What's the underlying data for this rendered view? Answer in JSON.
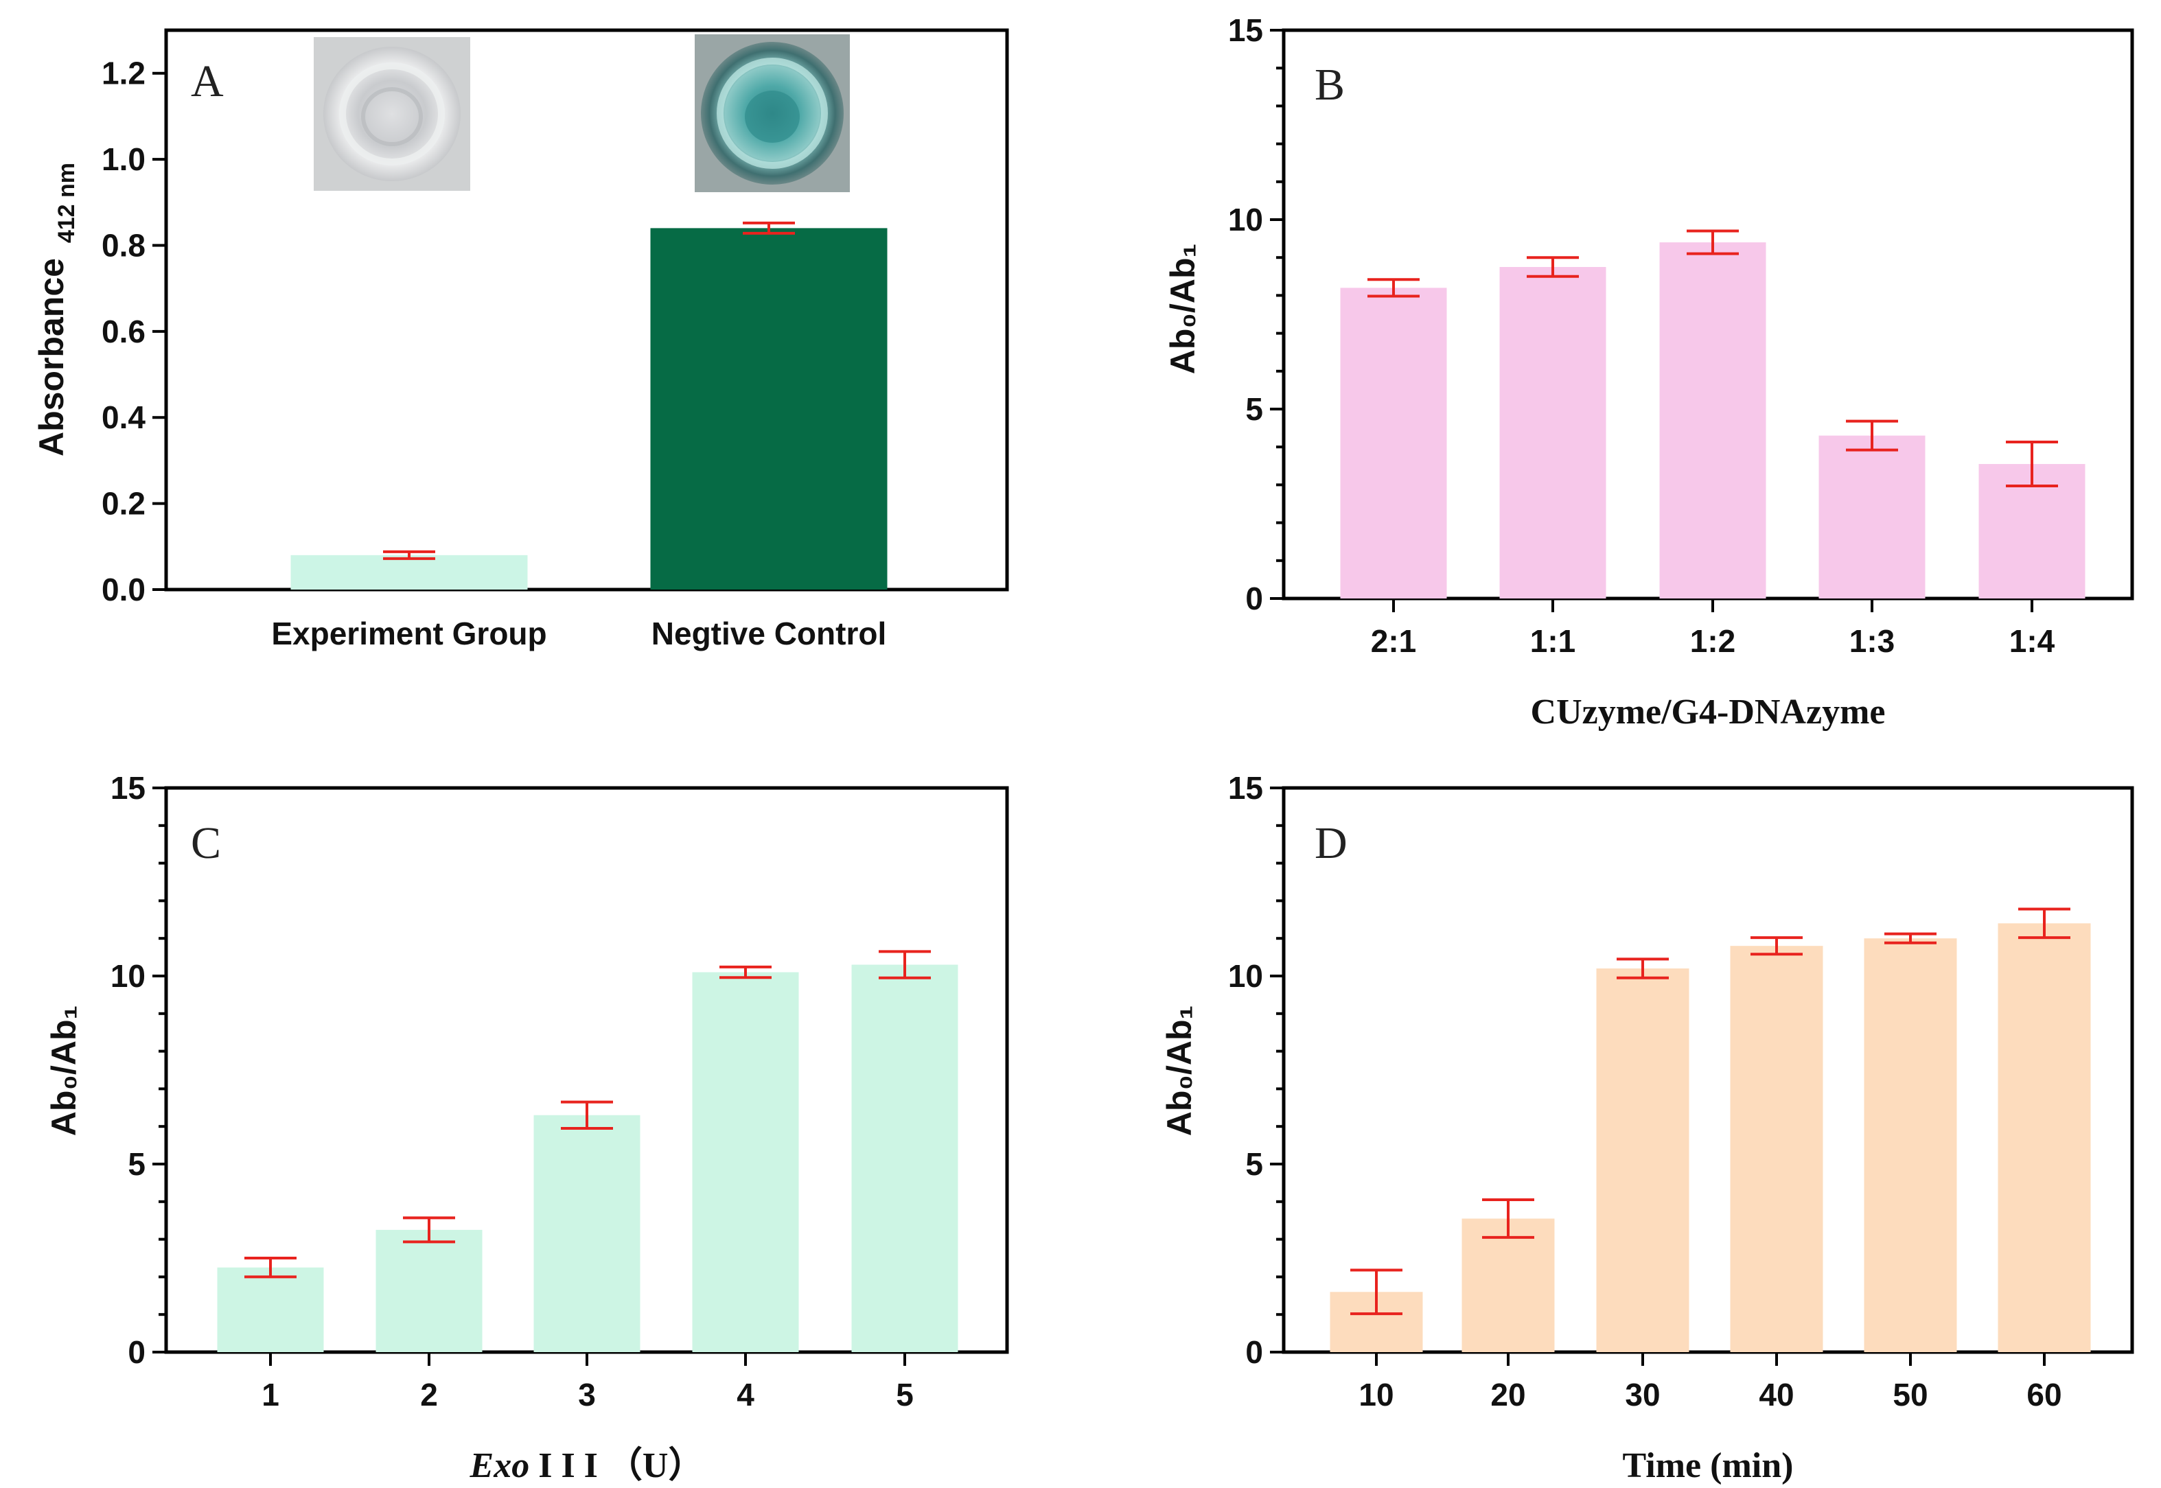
{
  "chart_data": [
    {
      "panel": "A",
      "type": "bar",
      "title": "",
      "categories": [
        "Experiment Group",
        "Negtive Control"
      ],
      "values": [
        0.08,
        0.84
      ],
      "errors": [
        0.008,
        0.012
      ],
      "colors": [
        "#ccf5e6",
        "#066b45"
      ],
      "ylabel": "Absorbance",
      "ylabel_sub": "412 nm",
      "xlabel": "",
      "ylim": [
        0,
        1.3
      ],
      "yticks": [
        "0.0",
        "0.2",
        "0.4",
        "0.6",
        "0.8",
        "1.0",
        "1.2"
      ],
      "insets": [
        {
          "name": "experiment-group-vial-photo",
          "caption": "colorless solution"
        },
        {
          "name": "negative-control-vial-photo",
          "caption": "blue-green solution"
        }
      ]
    },
    {
      "panel": "B",
      "type": "bar",
      "categories": [
        "2:1",
        "1:1",
        "1:2",
        "1:3",
        "1:4"
      ],
      "values": [
        8.2,
        8.75,
        9.4,
        4.3,
        3.55
      ],
      "errors": [
        0.22,
        0.25,
        0.3,
        0.38,
        0.58
      ],
      "color": "#f7c8ea",
      "ylabel": "Ab₀/Ab₁",
      "xlabel": "CUzyme/G4-DNAzyme",
      "ylim": [
        0,
        15
      ],
      "yticks": [
        "0",
        "5",
        "10",
        "15"
      ]
    },
    {
      "panel": "C",
      "type": "bar",
      "categories": [
        "1",
        "2",
        "3",
        "4",
        "5"
      ],
      "values": [
        2.25,
        3.25,
        6.3,
        10.1,
        10.3
      ],
      "errors": [
        0.25,
        0.32,
        0.35,
        0.14,
        0.35
      ],
      "color": "#cdf5e4",
      "ylabel": "Ab₀/Ab₁",
      "xlabel_italic": "Exo",
      "xlabel_rest": " I I I （U）",
      "ylim": [
        0,
        15
      ],
      "yticks": [
        "0",
        "5",
        "10",
        "15"
      ]
    },
    {
      "panel": "D",
      "type": "bar",
      "categories": [
        "10",
        "20",
        "30",
        "40",
        "50",
        "60"
      ],
      "values": [
        1.6,
        3.55,
        10.2,
        10.8,
        11.0,
        11.4
      ],
      "errors": [
        0.58,
        0.5,
        0.25,
        0.22,
        0.12,
        0.38
      ],
      "color": "#fddcbd",
      "ylabel": "Ab₀/Ab₁",
      "xlabel": "Time (min)",
      "ylim": [
        0,
        15
      ],
      "yticks": [
        "0",
        "5",
        "10",
        "15"
      ]
    }
  ]
}
